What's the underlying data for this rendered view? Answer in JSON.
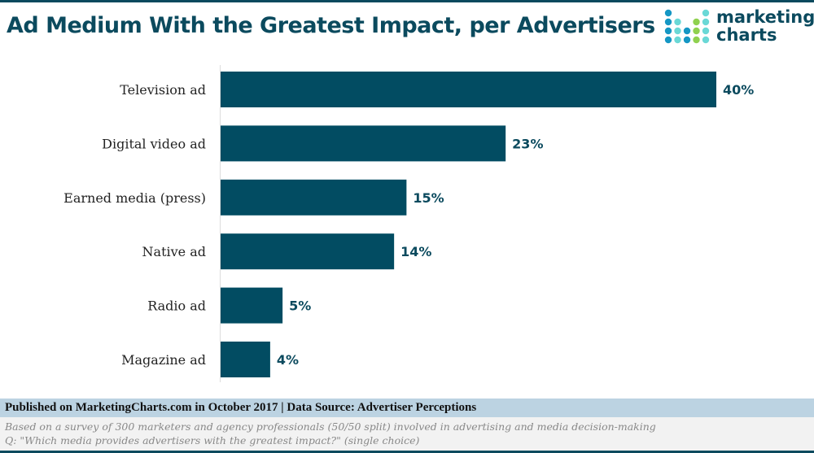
{
  "title": "Ad Medium With the Greatest Impact, per Advertisers",
  "logo": {
    "line1": "marketing",
    "line2": "charts"
  },
  "colors": {
    "bar": "#024c62",
    "accent": "#0b4a5e"
  },
  "chart_data": {
    "type": "bar",
    "orientation": "horizontal",
    "title": "Ad Medium With the Greatest Impact, per Advertisers",
    "categories": [
      "Television ad",
      "Digital video ad",
      "Earned media (press)",
      "Native ad",
      "Radio ad",
      "Magazine ad"
    ],
    "values": [
      40,
      23,
      15,
      14,
      5,
      4
    ],
    "labels": [
      "40%",
      "23%",
      "15%",
      "14%",
      "5%",
      "4%"
    ],
    "unit": "%",
    "xlim": [
      0,
      40
    ]
  },
  "footer": {
    "published": "Published on MarketingCharts.com in October 2017 | Data Source: Advertiser Perceptions",
    "note1": "Based on a survey of 300 marketers and agency professionals (50/50 split) involved in advertising and media decision-making",
    "note2": "Q: \"Which media provides advertisers with the greatest impact?\" (single choice)"
  }
}
